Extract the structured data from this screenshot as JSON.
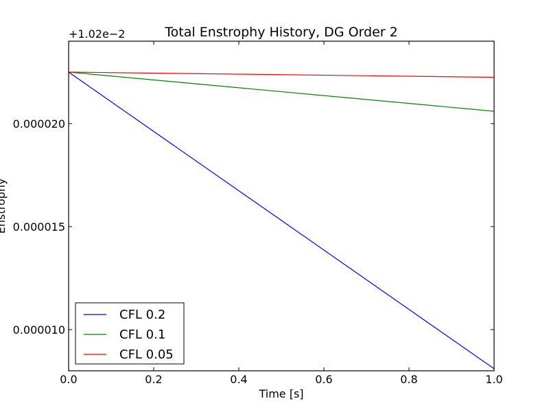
{
  "chart_data": {
    "type": "line",
    "title": "Total Enstrophy History, DG Order 2",
    "xlabel": "Time [s]",
    "ylabel": "Enstrophy",
    "offset_label": "+1.02e−2",
    "xlim": [
      0.0,
      1.0
    ],
    "ylim": [
      8e-06,
      2.4e-05
    ],
    "x_ticks": [
      0.0,
      0.2,
      0.4,
      0.6,
      0.8,
      1.0
    ],
    "x_tick_labels": [
      "0.0",
      "0.2",
      "0.4",
      "0.6",
      "0.8",
      "1.0"
    ],
    "y_ticks": [
      1e-05,
      1.5e-05,
      2e-05
    ],
    "y_tick_labels": [
      "0.000010",
      "0.000015",
      "0.000020"
    ],
    "grid": false,
    "legend_position": "lower-left",
    "series": [
      {
        "name": "CFL 0.2",
        "color": "#0000ff",
        "x": [
          0.0,
          1.0
        ],
        "y": [
          2.25e-05,
          8.1e-06
        ]
      },
      {
        "name": "CFL 0.1",
        "color": "#008000",
        "x": [
          0.0,
          1.0
        ],
        "y": [
          2.25e-05,
          2.06e-05
        ]
      },
      {
        "name": "CFL 0.05",
        "color": "#ff0000",
        "x": [
          0.0,
          1.0
        ],
        "y": [
          2.25e-05,
          2.225e-05
        ]
      }
    ]
  }
}
